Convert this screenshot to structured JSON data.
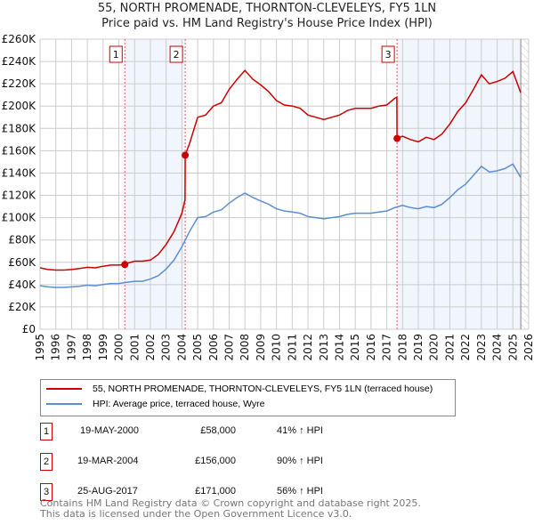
{
  "chart_data": {
    "type": "line",
    "title": "55, NORTH PROMENADE, THORNTON-CLEVELEYS, FY5 1LN",
    "subtitle": "Price paid vs. HM Land Registry's House Price Index (HPI)",
    "xlim": [
      1995,
      2026
    ],
    "ylim": [
      0,
      260000
    ],
    "grid": true,
    "y_ticks": [
      0,
      20000,
      40000,
      60000,
      80000,
      100000,
      120000,
      140000,
      160000,
      180000,
      200000,
      220000,
      240000,
      260000
    ],
    "y_tick_labels": [
      "£0",
      "£20K",
      "£40K",
      "£60K",
      "£80K",
      "£100K",
      "£120K",
      "£140K",
      "£160K",
      "£180K",
      "£200K",
      "£220K",
      "£240K",
      "£260K"
    ],
    "x_tick_labels": [
      "1995",
      "1996",
      "1997",
      "1998",
      "1999",
      "2000",
      "2001",
      "2002",
      "2003",
      "2004",
      "2005",
      "2006",
      "2007",
      "2008",
      "2009",
      "2010",
      "2011",
      "2012",
      "2013",
      "2014",
      "2015",
      "2016",
      "2017",
      "2018",
      "2019",
      "2020",
      "2021",
      "2022",
      "2023",
      "2024",
      "2025",
      "2026"
    ],
    "shaded_ranges": [
      [
        2000.38,
        2004.21
      ],
      [
        2017.65,
        2025.5
      ]
    ],
    "hatched_after": 2025.5,
    "series": [
      {
        "name": "55, NORTH PROMENADE, THORNTON-CLEVELEYS, FY5 1LN (terraced house)",
        "color": "#cc0000",
        "x": [
          1995,
          1995.5,
          1996,
          1996.5,
          1997,
          1997.5,
          1998,
          1998.5,
          1999,
          1999.5,
          2000,
          2000.38,
          2000.5,
          2001,
          2001.5,
          2002,
          2002.5,
          2003,
          2003.5,
          2004,
          2004.2,
          2004.21,
          2004.5,
          2005,
          2005.5,
          2006,
          2006.5,
          2007,
          2007.5,
          2008,
          2008.5,
          2009,
          2009.5,
          2010,
          2010.5,
          2011,
          2011.5,
          2012,
          2012.5,
          2013,
          2013.5,
          2014,
          2014.5,
          2015,
          2015.5,
          2016,
          2016.5,
          2017,
          2017.5,
          2017.64,
          2017.65,
          2018,
          2018.5,
          2019,
          2019.5,
          2020,
          2020.5,
          2021,
          2021.5,
          2022,
          2022.5,
          2023,
          2023.5,
          2024,
          2024.5,
          2025,
          2025.5
        ],
        "y": [
          55000,
          53500,
          53000,
          53000,
          53500,
          54500,
          55500,
          55000,
          56500,
          57500,
          57500,
          58000,
          59000,
          61000,
          61000,
          62000,
          67000,
          76000,
          87500,
          104000,
          116000,
          156000,
          167000,
          190000,
          192000,
          200000,
          203000,
          215000,
          224000,
          232000,
          224000,
          219000,
          213000,
          205000,
          201000,
          200000,
          198000,
          192000,
          190000,
          188000,
          190000,
          192000,
          196000,
          198000,
          198000,
          198000,
          200000,
          201000,
          207000,
          208000,
          171000,
          173000,
          170000,
          168000,
          172000,
          170000,
          175000,
          184000,
          195000,
          203000,
          215000,
          228000,
          220000,
          222000,
          225000,
          231000,
          212000
        ]
      },
      {
        "name": "HPI: Average price, terraced house, Wyre",
        "color": "#5b8fd0",
        "x": [
          1995,
          1995.5,
          1996,
          1996.5,
          1997,
          1997.5,
          1998,
          1998.5,
          1999,
          1999.5,
          2000,
          2000.5,
          2001,
          2001.5,
          2002,
          2002.5,
          2003,
          2003.5,
          2004,
          2004.5,
          2005,
          2005.5,
          2006,
          2006.5,
          2007,
          2007.5,
          2008,
          2008.5,
          2009,
          2009.5,
          2010,
          2010.5,
          2011,
          2011.5,
          2012,
          2012.5,
          2013,
          2013.5,
          2014,
          2014.5,
          2015,
          2015.5,
          2016,
          2016.5,
          2017,
          2017.5,
          2018,
          2018.5,
          2019,
          2019.5,
          2020,
          2020.5,
          2021,
          2021.5,
          2022,
          2022.5,
          2023,
          2023.5,
          2024,
          2024.5,
          2025,
          2025.5
        ],
        "y": [
          39000,
          38000,
          37500,
          37500,
          38000,
          38500,
          39500,
          39000,
          40000,
          41000,
          41000,
          42000,
          43000,
          43000,
          45000,
          48000,
          54000,
          62000,
          74000,
          88000,
          100000,
          101000,
          105000,
          107000,
          113000,
          118000,
          122000,
          118000,
          115000,
          112000,
          108000,
          106000,
          105000,
          104000,
          101000,
          100000,
          99000,
          100000,
          101000,
          103000,
          104000,
          104000,
          104000,
          105000,
          106000,
          109000,
          111000,
          109000,
          108000,
          110000,
          109000,
          112000,
          118000,
          125000,
          130000,
          138000,
          146000,
          141000,
          142000,
          144000,
          148000,
          136000
        ]
      }
    ],
    "sales": [
      {
        "label": "1",
        "date": "19-MAY-2000",
        "x": 2000.38,
        "price": 58000,
        "price_label": "£58,000",
        "hpi_label": "41% ↑ HPI"
      },
      {
        "label": "2",
        "date": "19-MAR-2004",
        "x": 2004.21,
        "price": 156000,
        "price_label": "£156,000",
        "hpi_label": "90% ↑ HPI"
      },
      {
        "label": "3",
        "date": "25-AUG-2017",
        "x": 2017.65,
        "price": 171000,
        "price_label": "£171,000",
        "hpi_label": "56% ↑ HPI"
      }
    ]
  },
  "footer": {
    "line1": "Contains HM Land Registry data © Crown copyright and database right 2025.",
    "line2": "This data is licensed under the Open Government Licence v3.0."
  }
}
